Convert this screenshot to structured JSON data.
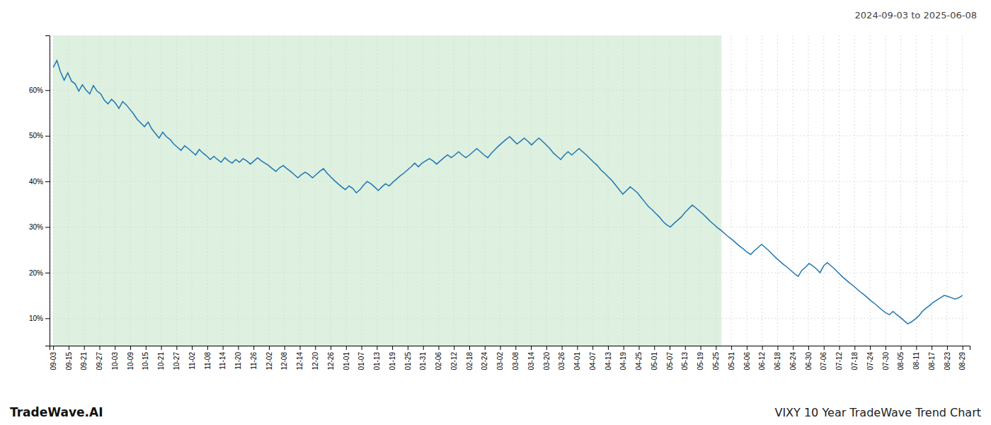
{
  "chart_data": {
    "type": "line",
    "title": "VIXY 10 Year TradeWave Trend Chart",
    "subtitle": "2024-09-03 to 2025-06-08",
    "annotations": [
      "TradeWave.AI"
    ],
    "grid": true,
    "xlim": [
      -1,
      251
    ],
    "xticks": [
      {
        "value": 0,
        "label": "09-03"
      },
      {
        "value": 4.2203,
        "label": "09-15"
      },
      {
        "value": 8.4407,
        "label": "09-21"
      },
      {
        "value": 12.661,
        "label": "09-27"
      },
      {
        "value": 16.8814,
        "label": "10-03"
      },
      {
        "value": 21.1017,
        "label": "10-09"
      },
      {
        "value": 25.322,
        "label": "10-15"
      },
      {
        "value": 29.5424,
        "label": "10-21"
      },
      {
        "value": 33.7627,
        "label": "10-27"
      },
      {
        "value": 37.9831,
        "label": "11-02"
      },
      {
        "value": 42.2034,
        "label": "11-08"
      },
      {
        "value": 46.4237,
        "label": "11-14"
      },
      {
        "value": 50.6441,
        "label": "11-20"
      },
      {
        "value": 54.8644,
        "label": "11-26"
      },
      {
        "value": 59.0847,
        "label": "12-02"
      },
      {
        "value": 63.3051,
        "label": "12-08"
      },
      {
        "value": 67.5254,
        "label": "12-14"
      },
      {
        "value": 71.7458,
        "label": "12-20"
      },
      {
        "value": 75.9661,
        "label": "12-26"
      },
      {
        "value": 80.1864,
        "label": "01-01"
      },
      {
        "value": 84.4068,
        "label": "01-07"
      },
      {
        "value": 88.6271,
        "label": "01-13"
      },
      {
        "value": 92.8475,
        "label": "01-19"
      },
      {
        "value": 97.0678,
        "label": "01-25"
      },
      {
        "value": 101.2881,
        "label": "01-31"
      },
      {
        "value": 105.5085,
        "label": "02-06"
      },
      {
        "value": 109.7288,
        "label": "02-12"
      },
      {
        "value": 113.9492,
        "label": "02-18"
      },
      {
        "value": 118.1695,
        "label": "02-24"
      },
      {
        "value": 122.3898,
        "label": "03-02"
      },
      {
        "value": 126.6102,
        "label": "03-08"
      },
      {
        "value": 130.8305,
        "label": "03-14"
      },
      {
        "value": 135.0508,
        "label": "03-20"
      },
      {
        "value": 139.2712,
        "label": "03-26"
      },
      {
        "value": 143.4915,
        "label": "04-01"
      },
      {
        "value": 147.7119,
        "label": "04-07"
      },
      {
        "value": 151.9322,
        "label": "04-13"
      },
      {
        "value": 156.1525,
        "label": "04-19"
      },
      {
        "value": 160.3729,
        "label": "04-25"
      },
      {
        "value": 164.5932,
        "label": "05-01"
      },
      {
        "value": 168.8136,
        "label": "05-07"
      },
      {
        "value": 173.0339,
        "label": "05-13"
      },
      {
        "value": 177.2542,
        "label": "05-19"
      },
      {
        "value": 181.4746,
        "label": "05-25"
      },
      {
        "value": 185.6949,
        "label": "05-31"
      },
      {
        "value": 189.9153,
        "label": "06-06"
      },
      {
        "value": 194.1356,
        "label": "06-12"
      },
      {
        "value": 198.3559,
        "label": "06-18"
      },
      {
        "value": 202.5763,
        "label": "06-24"
      },
      {
        "value": 206.7966,
        "label": "06-30"
      },
      {
        "value": 211.0169,
        "label": "07-06"
      },
      {
        "value": 215.2373,
        "label": "07-12"
      },
      {
        "value": 219.4576,
        "label": "07-18"
      },
      {
        "value": 223.678,
        "label": "07-24"
      },
      {
        "value": 227.8983,
        "label": "07-30"
      },
      {
        "value": 232.1186,
        "label": "08-05"
      },
      {
        "value": 236.339,
        "label": "08-11"
      },
      {
        "value": 240.5593,
        "label": "08-17"
      },
      {
        "value": 244.7797,
        "label": "08-23"
      },
      {
        "value": 249,
        "label": "08-29"
      }
    ],
    "ylim": [
      0.04,
      0.72
    ],
    "yticks": [
      {
        "value": 0.1,
        "label": "10%"
      },
      {
        "value": 0.2,
        "label": "20%"
      },
      {
        "value": 0.3,
        "label": "30%"
      },
      {
        "value": 0.4,
        "label": "40%"
      },
      {
        "value": 0.5,
        "label": "50%"
      },
      {
        "value": 0.6,
        "label": "60%"
      }
    ],
    "shaded_region": {
      "x_start": 0,
      "x_end": 183,
      "color": "#c8e6c9"
    },
    "x": [
      0,
      1,
      2,
      3,
      4,
      5,
      6,
      7,
      8,
      9,
      10,
      11,
      12,
      13,
      14,
      15,
      16,
      17,
      18,
      19,
      20,
      21,
      22,
      23,
      24,
      25,
      26,
      27,
      28,
      29,
      30,
      31,
      32,
      33,
      34,
      35,
      36,
      37,
      38,
      39,
      40,
      41,
      42,
      43,
      44,
      45,
      46,
      47,
      48,
      49,
      50,
      51,
      52,
      53,
      54,
      55,
      56,
      57,
      58,
      59,
      60,
      61,
      62,
      63,
      64,
      65,
      66,
      67,
      68,
      69,
      70,
      71,
      72,
      73,
      74,
      75,
      76,
      77,
      78,
      79,
      80,
      81,
      82,
      83,
      84,
      85,
      86,
      87,
      88,
      89,
      90,
      91,
      92,
      93,
      94,
      95,
      96,
      97,
      98,
      99,
      100,
      101,
      102,
      103,
      104,
      105,
      106,
      107,
      108,
      109,
      110,
      111,
      112,
      113,
      114,
      115,
      116,
      117,
      118,
      119,
      120,
      121,
      122,
      123,
      124,
      125,
      126,
      127,
      128,
      129,
      130,
      131,
      132,
      133,
      134,
      135,
      136,
      137,
      138,
      139,
      140,
      141,
      142,
      143,
      144,
      145,
      146,
      147,
      148,
      149,
      150,
      151,
      152,
      153,
      154,
      155,
      156,
      157,
      158,
      159,
      160,
      161,
      162,
      163,
      164,
      165,
      166,
      167,
      168,
      169,
      170,
      171,
      172,
      173,
      174,
      175,
      176,
      177,
      178,
      179,
      180,
      181,
      182,
      183,
      184,
      185,
      186,
      187,
      188,
      189,
      190,
      191,
      192,
      193,
      194,
      195,
      196,
      197,
      198,
      199,
      200,
      201,
      202,
      203,
      204,
      205,
      206,
      207,
      208,
      209,
      210,
      211,
      212,
      213,
      214,
      215,
      216,
      217,
      218,
      219,
      220,
      221,
      222,
      223,
      224,
      225,
      226,
      227,
      228,
      229,
      230,
      231,
      232,
      233,
      234,
      235,
      236,
      237,
      238,
      239,
      240,
      241,
      242,
      243,
      244,
      245,
      246,
      247,
      248,
      249
    ],
    "values": [
      0.65,
      0.665,
      0.64,
      0.622,
      0.638,
      0.62,
      0.614,
      0.598,
      0.612,
      0.6,
      0.592,
      0.61,
      0.598,
      0.592,
      0.578,
      0.57,
      0.58,
      0.572,
      0.56,
      0.575,
      0.568,
      0.558,
      0.548,
      0.536,
      0.528,
      0.52,
      0.53,
      0.515,
      0.505,
      0.495,
      0.508,
      0.498,
      0.492,
      0.482,
      0.475,
      0.468,
      0.478,
      0.472,
      0.465,
      0.458,
      0.47,
      0.462,
      0.456,
      0.448,
      0.455,
      0.448,
      0.442,
      0.452,
      0.445,
      0.44,
      0.448,
      0.442,
      0.45,
      0.445,
      0.438,
      0.445,
      0.452,
      0.445,
      0.44,
      0.435,
      0.428,
      0.422,
      0.43,
      0.435,
      0.428,
      0.422,
      0.415,
      0.408,
      0.415,
      0.42,
      0.415,
      0.408,
      0.415,
      0.422,
      0.428,
      0.418,
      0.41,
      0.402,
      0.395,
      0.388,
      0.382,
      0.39,
      0.385,
      0.375,
      0.382,
      0.392,
      0.4,
      0.395,
      0.388,
      0.38,
      0.388,
      0.395,
      0.39,
      0.398,
      0.405,
      0.412,
      0.418,
      0.425,
      0.432,
      0.44,
      0.432,
      0.44,
      0.445,
      0.45,
      0.445,
      0.438,
      0.445,
      0.452,
      0.458,
      0.452,
      0.458,
      0.465,
      0.458,
      0.452,
      0.458,
      0.465,
      0.472,
      0.465,
      0.458,
      0.452,
      0.462,
      0.47,
      0.478,
      0.485,
      0.492,
      0.498,
      0.49,
      0.482,
      0.488,
      0.495,
      0.488,
      0.48,
      0.488,
      0.495,
      0.488,
      0.48,
      0.472,
      0.462,
      0.455,
      0.448,
      0.458,
      0.465,
      0.458,
      0.465,
      0.472,
      0.465,
      0.458,
      0.45,
      0.442,
      0.435,
      0.425,
      0.418,
      0.41,
      0.402,
      0.392,
      0.382,
      0.372,
      0.38,
      0.388,
      0.382,
      0.375,
      0.365,
      0.355,
      0.345,
      0.338,
      0.33,
      0.322,
      0.312,
      0.305,
      0.3,
      0.308,
      0.315,
      0.322,
      0.332,
      0.34,
      0.348,
      0.342,
      0.335,
      0.328,
      0.32,
      0.312,
      0.305,
      0.298,
      0.292,
      0.285,
      0.278,
      0.272,
      0.265,
      0.258,
      0.252,
      0.245,
      0.24,
      0.248,
      0.255,
      0.262,
      0.255,
      0.248,
      0.24,
      0.232,
      0.225,
      0.218,
      0.212,
      0.205,
      0.198,
      0.192,
      0.205,
      0.212,
      0.22,
      0.215,
      0.208,
      0.2,
      0.215,
      0.222,
      0.215,
      0.208,
      0.2,
      0.192,
      0.185,
      0.178,
      0.172,
      0.165,
      0.158,
      0.152,
      0.145,
      0.138,
      0.132,
      0.125,
      0.118,
      0.112,
      0.108,
      0.115,
      0.108,
      0.102,
      0.095,
      0.088,
      0.092,
      0.098,
      0.105,
      0.115,
      0.122,
      0.128,
      0.135,
      0.14,
      0.145,
      0.15,
      0.148,
      0.145,
      0.142,
      0.145,
      0.15
    ]
  }
}
